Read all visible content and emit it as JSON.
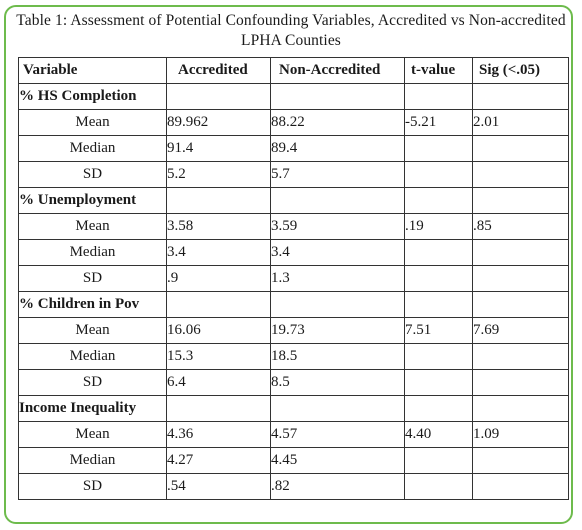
{
  "table": {
    "caption": "Table 1: Assessment of Potential Confounding Variables, Accredited vs Non-accredited LPHA Counties",
    "headers": {
      "variable": "Variable",
      "accredited": "Accredited",
      "non_accredited": "Non-Accredited",
      "t_value": "t-value",
      "sig": "Sig (<.05)"
    },
    "sections": [
      {
        "title": "% HS Completion",
        "rows": [
          {
            "stat": "Mean",
            "accredited": "89.962",
            "non_accredited": "88.22",
            "t_value": "-5.21",
            "sig": "2.01"
          },
          {
            "stat": "Median",
            "accredited": "91.4",
            "non_accredited": "89.4",
            "t_value": "",
            "sig": ""
          },
          {
            "stat": "SD",
            "accredited": "5.2",
            "non_accredited": "5.7",
            "t_value": "",
            "sig": ""
          }
        ]
      },
      {
        "title": "% Unemployment",
        "rows": [
          {
            "stat": "Mean",
            "accredited": "3.58",
            "non_accredited": "3.59",
            "t_value": ".19",
            "sig": ".85"
          },
          {
            "stat": "Median",
            "accredited": "3.4",
            "non_accredited": "3.4",
            "t_value": "",
            "sig": ""
          },
          {
            "stat": "SD",
            "accredited": ".9",
            "non_accredited": "1.3",
            "t_value": "",
            "sig": ""
          }
        ]
      },
      {
        "title": "% Children in Pov",
        "rows": [
          {
            "stat": "Mean",
            "accredited": "16.06",
            "non_accredited": "19.73",
            "t_value": "7.51",
            "sig": "7.69"
          },
          {
            "stat": "Median",
            "accredited": "15.3",
            "non_accredited": "18.5",
            "t_value": "",
            "sig": ""
          },
          {
            "stat": "SD",
            "accredited": "6.4",
            "non_accredited": "8.5",
            "t_value": "",
            "sig": ""
          }
        ]
      },
      {
        "title": "Income Inequality",
        "rows": [
          {
            "stat": "Mean",
            "accredited": "4.36",
            "non_accredited": "4.57",
            "t_value": "4.40",
            "sig": "1.09"
          },
          {
            "stat": "Median",
            "accredited": "4.27",
            "non_accredited": "4.45",
            "t_value": "",
            "sig": ""
          },
          {
            "stat": "SD",
            "accredited": ".54",
            "non_accredited": ".82",
            "t_value": "",
            "sig": ""
          }
        ]
      }
    ]
  },
  "colors": {
    "frame_border": "#6dbb4c",
    "grid_lines": "#333333",
    "text": "#1a1a1a"
  }
}
